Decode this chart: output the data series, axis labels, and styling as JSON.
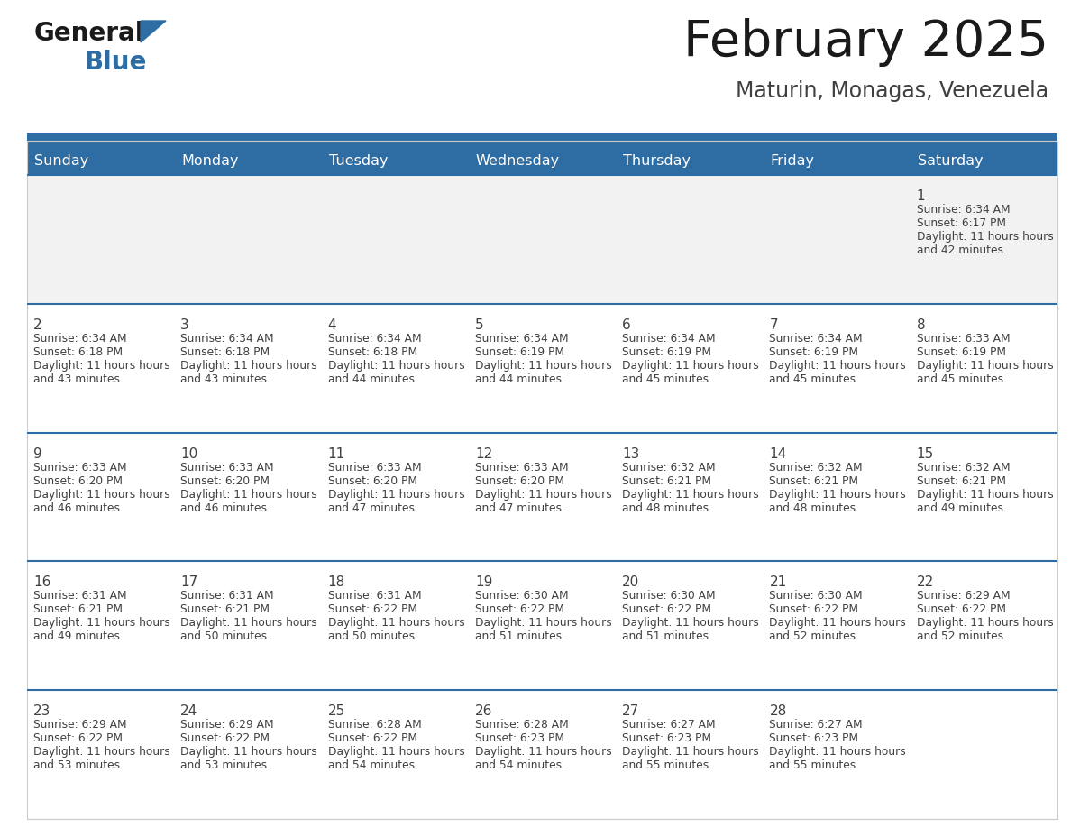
{
  "title": "February 2025",
  "subtitle": "Maturin, Monagas, Venezuela",
  "days_of_week": [
    "Sunday",
    "Monday",
    "Tuesday",
    "Wednesday",
    "Thursday",
    "Friday",
    "Saturday"
  ],
  "header_bg": "#2e6da4",
  "header_text": "#ffffff",
  "cell_bg_white": "#ffffff",
  "cell_bg_gray": "#f2f2f2",
  "line_color": "#2e6da4",
  "text_color": "#404040",
  "day_num_color": "#404040",
  "logo_general_color": "#1a1a1a",
  "logo_blue_color": "#2e6da4",
  "logo_triangle_color": "#2e6da4",
  "calendar": [
    [
      null,
      null,
      null,
      null,
      null,
      null,
      {
        "day": 1,
        "sunrise": "6:34 AM",
        "sunset": "6:17 PM",
        "daylight": "11 hours and 42 minutes."
      }
    ],
    [
      {
        "day": 2,
        "sunrise": "6:34 AM",
        "sunset": "6:18 PM",
        "daylight": "11 hours and 43 minutes."
      },
      {
        "day": 3,
        "sunrise": "6:34 AM",
        "sunset": "6:18 PM",
        "daylight": "11 hours and 43 minutes."
      },
      {
        "day": 4,
        "sunrise": "6:34 AM",
        "sunset": "6:18 PM",
        "daylight": "11 hours and 44 minutes."
      },
      {
        "day": 5,
        "sunrise": "6:34 AM",
        "sunset": "6:19 PM",
        "daylight": "11 hours and 44 minutes."
      },
      {
        "day": 6,
        "sunrise": "6:34 AM",
        "sunset": "6:19 PM",
        "daylight": "11 hours and 45 minutes."
      },
      {
        "day": 7,
        "sunrise": "6:34 AM",
        "sunset": "6:19 PM",
        "daylight": "11 hours and 45 minutes."
      },
      {
        "day": 8,
        "sunrise": "6:33 AM",
        "sunset": "6:19 PM",
        "daylight": "11 hours and 45 minutes."
      }
    ],
    [
      {
        "day": 9,
        "sunrise": "6:33 AM",
        "sunset": "6:20 PM",
        "daylight": "11 hours and 46 minutes."
      },
      {
        "day": 10,
        "sunrise": "6:33 AM",
        "sunset": "6:20 PM",
        "daylight": "11 hours and 46 minutes."
      },
      {
        "day": 11,
        "sunrise": "6:33 AM",
        "sunset": "6:20 PM",
        "daylight": "11 hours and 47 minutes."
      },
      {
        "day": 12,
        "sunrise": "6:33 AM",
        "sunset": "6:20 PM",
        "daylight": "11 hours and 47 minutes."
      },
      {
        "day": 13,
        "sunrise": "6:32 AM",
        "sunset": "6:21 PM",
        "daylight": "11 hours and 48 minutes."
      },
      {
        "day": 14,
        "sunrise": "6:32 AM",
        "sunset": "6:21 PM",
        "daylight": "11 hours and 48 minutes."
      },
      {
        "day": 15,
        "sunrise": "6:32 AM",
        "sunset": "6:21 PM",
        "daylight": "11 hours and 49 minutes."
      }
    ],
    [
      {
        "day": 16,
        "sunrise": "6:31 AM",
        "sunset": "6:21 PM",
        "daylight": "11 hours and 49 minutes."
      },
      {
        "day": 17,
        "sunrise": "6:31 AM",
        "sunset": "6:21 PM",
        "daylight": "11 hours and 50 minutes."
      },
      {
        "day": 18,
        "sunrise": "6:31 AM",
        "sunset": "6:22 PM",
        "daylight": "11 hours and 50 minutes."
      },
      {
        "day": 19,
        "sunrise": "6:30 AM",
        "sunset": "6:22 PM",
        "daylight": "11 hours and 51 minutes."
      },
      {
        "day": 20,
        "sunrise": "6:30 AM",
        "sunset": "6:22 PM",
        "daylight": "11 hours and 51 minutes."
      },
      {
        "day": 21,
        "sunrise": "6:30 AM",
        "sunset": "6:22 PM",
        "daylight": "11 hours and 52 minutes."
      },
      {
        "day": 22,
        "sunrise": "6:29 AM",
        "sunset": "6:22 PM",
        "daylight": "11 hours and 52 minutes."
      }
    ],
    [
      {
        "day": 23,
        "sunrise": "6:29 AM",
        "sunset": "6:22 PM",
        "daylight": "11 hours and 53 minutes."
      },
      {
        "day": 24,
        "sunrise": "6:29 AM",
        "sunset": "6:22 PM",
        "daylight": "11 hours and 53 minutes."
      },
      {
        "day": 25,
        "sunrise": "6:28 AM",
        "sunset": "6:22 PM",
        "daylight": "11 hours and 54 minutes."
      },
      {
        "day": 26,
        "sunrise": "6:28 AM",
        "sunset": "6:23 PM",
        "daylight": "11 hours and 54 minutes."
      },
      {
        "day": 27,
        "sunrise": "6:27 AM",
        "sunset": "6:23 PM",
        "daylight": "11 hours and 55 minutes."
      },
      {
        "day": 28,
        "sunrise": "6:27 AM",
        "sunset": "6:23 PM",
        "daylight": "11 hours and 55 minutes."
      },
      null
    ]
  ]
}
